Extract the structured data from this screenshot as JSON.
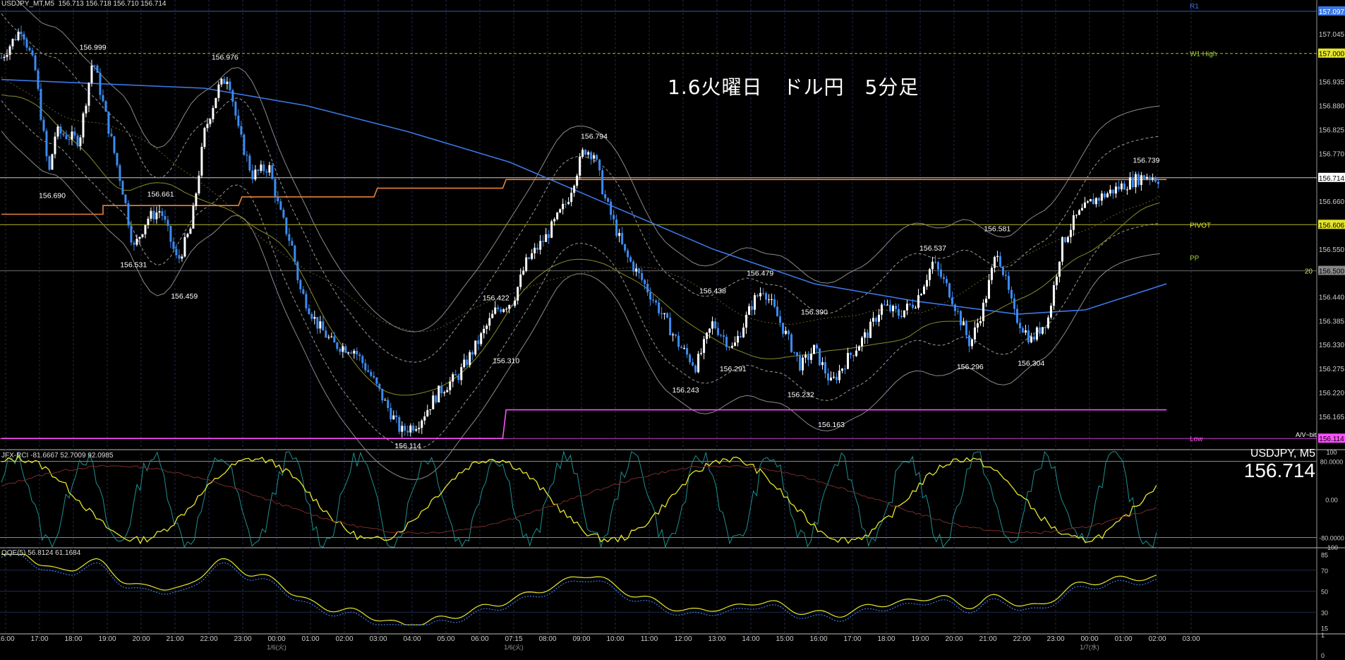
{
  "header": {
    "main": "USDJPY_MT,M5  156.713 156.718 156.710 156.714",
    "rci": "JFX-RCI -81.6667 52.7009 92.0985",
    "qqe": "QQE(5) 56.8124 61.1684"
  },
  "overlay_title": "1.6火曜日　ドル円　5分足",
  "symbol_label": "USDJPY, M5",
  "current_price": "156.714",
  "colors": {
    "background": "#000000",
    "candle_up": "#ffffff",
    "candle_down": "#3d8bf0",
    "ma_blue": "#3b78e7",
    "orange_line": "#e8833a",
    "magenta_line": "#ff4fff",
    "yellow": "#e6e62e",
    "grid": "#1e2a4a"
  },
  "price_axis": {
    "ticks": [
      "157.045",
      "156.935",
      "156.880",
      "156.825",
      "156.770",
      "156.660",
      "156.550",
      "156.440",
      "156.385",
      "156.330",
      "156.275",
      "156.220",
      "156.165"
    ],
    "highlighted": [
      {
        "text": "157.097",
        "color": "#3b78e7",
        "fg": "#ffffff",
        "price": 157.097
      },
      {
        "text": "157.000",
        "color": "#e6e62e",
        "fg": "#000000",
        "price": 157.0
      },
      {
        "text": "156.714",
        "color": "#ffffff",
        "fg": "#000000",
        "price": 156.714
      },
      {
        "text": "156.606",
        "color": "#e6e62e",
        "fg": "#000000",
        "price": 156.606
      },
      {
        "text": "156.500",
        "color": "#888888",
        "fg": "#000000",
        "price": 156.5
      },
      {
        "text": "156.114",
        "color": "#ff4fff",
        "fg": "#000000",
        "price": 156.114
      }
    ]
  },
  "level_labels": [
    {
      "text": "R1",
      "price": 157.097,
      "color": "#3b78e7"
    },
    {
      "text": "W1 High",
      "price": 157.0,
      "color": "#9ecf3a"
    },
    {
      "text": "PIVOT",
      "price": 156.606,
      "color": "#e6e62e"
    },
    {
      "text": "PP",
      "price": 156.53,
      "color": "#9ecf3a"
    },
    {
      "text": "Low",
      "price": 156.114,
      "color": "#ff4fff"
    }
  ],
  "rci_axis": [
    "100",
    "80.0000",
    "0.00",
    "-80.0000",
    "-100"
  ],
  "qqe_axis": [
    "85",
    "70",
    "50",
    "30",
    "15"
  ],
  "volume_axis": [
    "1",
    "0"
  ],
  "time_axis": [
    "16:00",
    "17:00",
    "18:00",
    "19:00",
    "20:00",
    "21:00",
    "22:00",
    "23:00",
    "00:00",
    "01:00",
    "02:00",
    "03:00",
    "04:00",
    "05:00",
    "06:00",
    "07:15",
    "08:00",
    "09:00",
    "10:00",
    "11:00",
    "12:00",
    "13:00",
    "14:00",
    "15:00",
    "16:00",
    "17:00",
    "18:00",
    "19:00",
    "20:00",
    "21:00",
    "22:00",
    "23:00",
    "00:00",
    "01:00",
    "02:00",
    "03:00"
  ],
  "date_labels": [
    {
      "text": "1/6(火)",
      "index": 8
    },
    {
      "text": "1/6(火)",
      "index": 15
    },
    {
      "text": "1/7(水)",
      "index": 32
    }
  ],
  "extra_tag": "A/V~bit",
  "side_tag": "20",
  "chart_data": {
    "type": "candlestick",
    "instrument": "USDJPY",
    "timeframe": "M5",
    "ylim": [
      156.09,
      157.11
    ],
    "price_labels": [
      {
        "value": "156.999",
        "t": 2.7
      },
      {
        "value": "156.690",
        "t": 1.5
      },
      {
        "value": "156.976",
        "t": 6.6
      },
      {
        "value": "156.661",
        "t": 4.7
      },
      {
        "value": "156.531",
        "t": 3.9
      },
      {
        "value": "156.459",
        "t": 5.4
      },
      {
        "value": "156.114",
        "t": 12.0
      },
      {
        "value": "156.422",
        "t": 14.6
      },
      {
        "value": "156.310",
        "t": 14.9
      },
      {
        "value": "156.794",
        "t": 17.5
      },
      {
        "value": "156.243",
        "t": 20.2
      },
      {
        "value": "156.438",
        "t": 21.0
      },
      {
        "value": "156.291",
        "t": 21.6
      },
      {
        "value": "156.479",
        "t": 22.4
      },
      {
        "value": "156.232",
        "t": 23.6
      },
      {
        "value": "156.390",
        "t": 24.0
      },
      {
        "value": "156.163",
        "t": 24.5
      },
      {
        "value": "156.537",
        "t": 27.5
      },
      {
        "value": "156.296",
        "t": 28.6
      },
      {
        "value": "156.581",
        "t": 29.4
      },
      {
        "value": "156.304",
        "t": 30.4
      },
      {
        "value": "156.739",
        "t": 33.8
      }
    ],
    "path_anchors": [
      [
        0,
        156.99
      ],
      [
        0.6,
        157.06
      ],
      [
        1.0,
        156.96
      ],
      [
        1.4,
        156.72
      ],
      [
        1.6,
        156.82
      ],
      [
        2.3,
        156.8
      ],
      [
        2.7,
        156.99
      ],
      [
        3.1,
        156.85
      ],
      [
        3.6,
        156.68
      ],
      [
        3.9,
        156.55
      ],
      [
        4.3,
        156.62
      ],
      [
        4.7,
        156.64
      ],
      [
        5.2,
        156.52
      ],
      [
        5.6,
        156.6
      ],
      [
        6.0,
        156.82
      ],
      [
        6.4,
        156.92
      ],
      [
        6.7,
        156.95
      ],
      [
        7.0,
        156.82
      ],
      [
        7.4,
        156.72
      ],
      [
        7.9,
        156.74
      ],
      [
        8.2,
        156.64
      ],
      [
        8.6,
        156.55
      ],
      [
        8.8,
        156.46
      ],
      [
        9.3,
        156.38
      ],
      [
        9.8,
        156.33
      ],
      [
        10.4,
        156.32
      ],
      [
        10.9,
        156.26
      ],
      [
        11.3,
        156.2
      ],
      [
        11.8,
        156.13
      ],
      [
        12.3,
        156.15
      ],
      [
        12.9,
        156.22
      ],
      [
        13.5,
        156.26
      ],
      [
        14.1,
        156.34
      ],
      [
        14.6,
        156.41
      ],
      [
        15.1,
        156.43
      ],
      [
        15.5,
        156.52
      ],
      [
        16.1,
        156.58
      ],
      [
        16.7,
        156.66
      ],
      [
        17.2,
        156.78
      ],
      [
        17.5,
        156.77
      ],
      [
        17.8,
        156.67
      ],
      [
        18.4,
        156.54
      ],
      [
        18.9,
        156.48
      ],
      [
        19.5,
        156.4
      ],
      [
        20.0,
        156.33
      ],
      [
        20.5,
        156.28
      ],
      [
        21.0,
        156.38
      ],
      [
        21.6,
        156.32
      ],
      [
        22.2,
        156.43
      ],
      [
        22.5,
        156.46
      ],
      [
        23.0,
        156.38
      ],
      [
        23.6,
        156.28
      ],
      [
        24.0,
        156.32
      ],
      [
        24.5,
        156.24
      ],
      [
        25.0,
        156.3
      ],
      [
        25.6,
        156.36
      ],
      [
        26.0,
        156.42
      ],
      [
        26.5,
        156.4
      ],
      [
        27.0,
        156.43
      ],
      [
        27.5,
        156.52
      ],
      [
        28.0,
        156.45
      ],
      [
        28.6,
        156.33
      ],
      [
        29.0,
        156.42
      ],
      [
        29.4,
        156.55
      ],
      [
        29.9,
        156.4
      ],
      [
        30.4,
        156.34
      ],
      [
        30.9,
        156.39
      ],
      [
        31.3,
        156.56
      ],
      [
        31.7,
        156.62
      ],
      [
        32.2,
        156.66
      ],
      [
        32.7,
        156.68
      ],
      [
        33.2,
        156.7
      ],
      [
        33.8,
        156.72
      ],
      [
        34.2,
        156.71
      ]
    ],
    "series_lines": [
      {
        "name": "MA blue",
        "color": "#3b78e7",
        "points": [
          [
            0,
            156.94
          ],
          [
            3,
            156.93
          ],
          [
            6,
            156.92
          ],
          [
            9,
            156.88
          ],
          [
            12,
            156.82
          ],
          [
            15,
            156.75
          ],
          [
            18,
            156.65
          ],
          [
            21,
            156.55
          ],
          [
            24,
            156.47
          ],
          [
            27,
            156.43
          ],
          [
            30,
            156.4
          ],
          [
            32,
            156.41
          ],
          [
            34.4,
            156.47
          ]
        ]
      },
      {
        "name": "orange",
        "color": "#e8833a",
        "points": [
          [
            0,
            156.63
          ],
          [
            3,
            156.63
          ],
          [
            3.0,
            156.65
          ],
          [
            7,
            156.65
          ],
          [
            7.1,
            156.67
          ],
          [
            11,
            156.67
          ],
          [
            11.1,
            156.69
          ],
          [
            14.8,
            156.69
          ],
          [
            14.9,
            156.71
          ],
          [
            34.4,
            156.71
          ]
        ]
      },
      {
        "name": "magenta",
        "color": "#ff4fff",
        "points": [
          [
            0,
            156.114
          ],
          [
            14.8,
            156.114
          ],
          [
            14.9,
            156.18
          ],
          [
            34.4,
            156.18
          ]
        ]
      }
    ],
    "ylabel": "",
    "xlabel": ""
  }
}
